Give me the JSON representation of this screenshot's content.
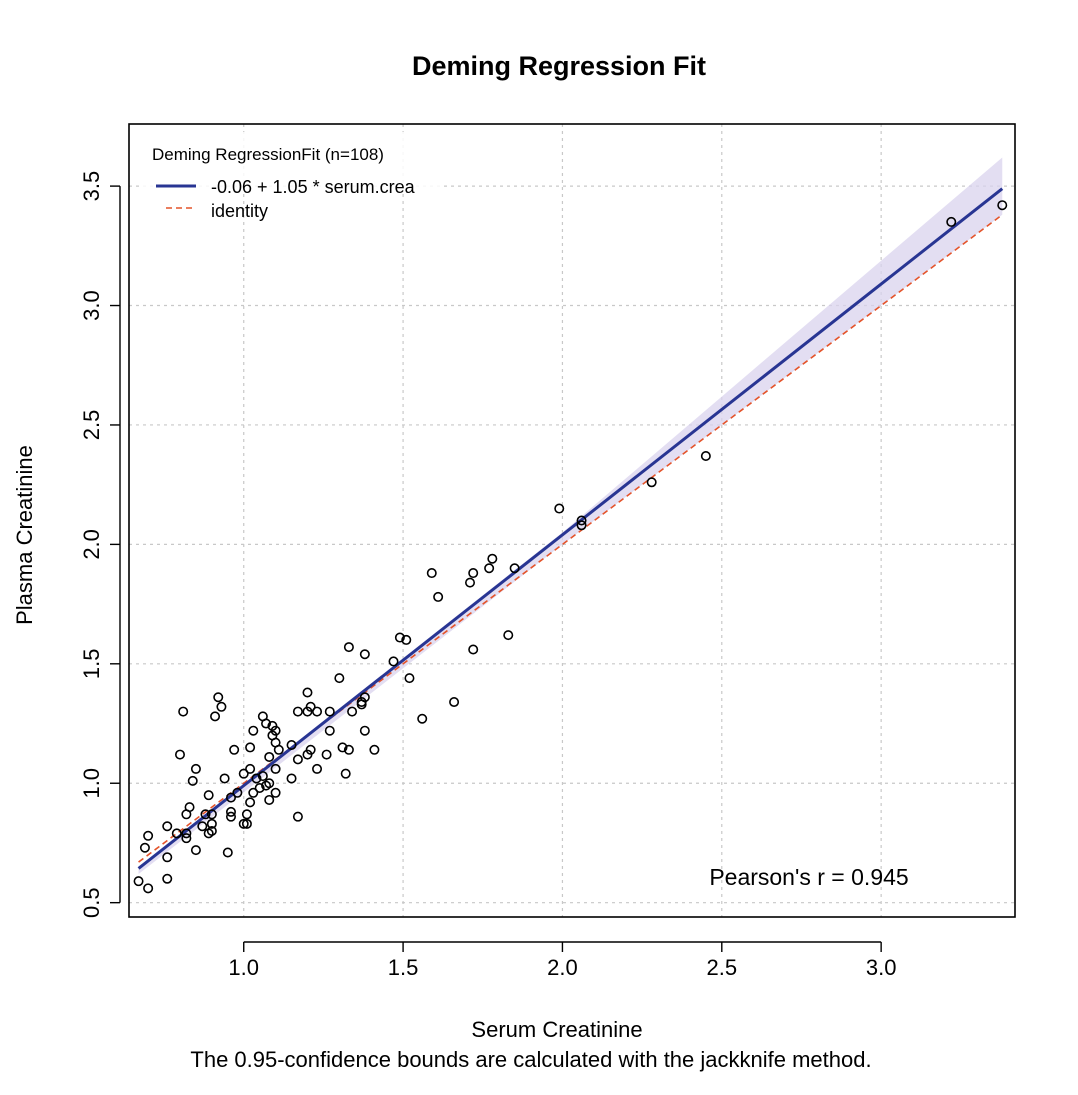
{
  "chart_data": {
    "type": "scatter",
    "title": "Deming Regression Fit",
    "xlabel": "Serum Creatinine",
    "ylabel": "Plasma Creatinine",
    "subtitle": "The 0.95-confidence bounds are calculated with the jackknife method.",
    "annotation": "Pearson's r = 0.945",
    "xlim": [
      0.64,
      3.42
    ],
    "ylim": [
      0.44,
      3.76
    ],
    "x_ticks": [
      1.0,
      1.5,
      2.0,
      2.5,
      3.0
    ],
    "x_tick_labels": [
      "1.0",
      "1.5",
      "2.0",
      "2.5",
      "3.0"
    ],
    "y_ticks": [
      0.5,
      1.0,
      1.5,
      2.0,
      2.5,
      3.0,
      3.5
    ],
    "y_tick_labels": [
      "0.5",
      "1.0",
      "1.5",
      "2.0",
      "2.5",
      "3.0",
      "3.5"
    ],
    "grid": true,
    "legend": {
      "title": "Deming RegressionFit (n=108)",
      "position": "top-left",
      "entries": [
        {
          "label": "-0.06 + 1.05 * serum.crea",
          "color": "#283593",
          "style": "solid"
        },
        {
          "label": "identity",
          "color": "#e4532a",
          "style": "dashed"
        }
      ]
    },
    "regression": {
      "intercept": -0.06,
      "slope": 1.05,
      "x_range": [
        0.67,
        3.38
      ],
      "color": "#283593"
    },
    "identity_line": {
      "x_range": [
        0.67,
        3.38
      ],
      "color": "#e4532a"
    },
    "confidence_band": {
      "color": "#d9d3ee",
      "lower": [
        [
          0.67,
          0.62
        ],
        [
          2.0,
          2.0
        ],
        [
          3.38,
          3.38
        ]
      ],
      "upper": [
        [
          0.67,
          0.65
        ],
        [
          2.0,
          2.05
        ],
        [
          3.38,
          3.62
        ]
      ]
    },
    "points": [
      [
        0.67,
        0.59
      ],
      [
        0.69,
        0.73
      ],
      [
        0.7,
        0.56
      ],
      [
        0.7,
        0.78
      ],
      [
        0.76,
        0.69
      ],
      [
        0.76,
        0.6
      ],
      [
        0.76,
        0.82
      ],
      [
        0.79,
        0.79
      ],
      [
        0.8,
        1.12
      ],
      [
        0.81,
        1.3
      ],
      [
        0.82,
        0.77
      ],
      [
        0.82,
        0.79
      ],
      [
        0.82,
        0.87
      ],
      [
        0.83,
        0.9
      ],
      [
        0.84,
        1.01
      ],
      [
        0.85,
        0.72
      ],
      [
        0.85,
        1.06
      ],
      [
        0.87,
        0.82
      ],
      [
        0.88,
        0.87
      ],
      [
        0.89,
        0.79
      ],
      [
        0.89,
        0.95
      ],
      [
        0.9,
        0.8
      ],
      [
        0.9,
        0.83
      ],
      [
        0.9,
        0.87
      ],
      [
        0.91,
        1.28
      ],
      [
        0.92,
        1.36
      ],
      [
        0.93,
        1.32
      ],
      [
        0.94,
        1.02
      ],
      [
        0.95,
        0.71
      ],
      [
        0.96,
        0.94
      ],
      [
        0.96,
        0.86
      ],
      [
        0.96,
        0.88
      ],
      [
        0.97,
        1.14
      ],
      [
        0.98,
        0.96
      ],
      [
        1.0,
        0.83
      ],
      [
        1.0,
        1.04
      ],
      [
        1.01,
        0.83
      ],
      [
        1.01,
        0.87
      ],
      [
        1.02,
        0.92
      ],
      [
        1.02,
        1.06
      ],
      [
        1.02,
        1.15
      ],
      [
        1.03,
        1.22
      ],
      [
        1.03,
        0.96
      ],
      [
        1.04,
        1.02
      ],
      [
        1.05,
        0.98
      ],
      [
        1.06,
        1.03
      ],
      [
        1.06,
        1.28
      ],
      [
        1.07,
        0.99
      ],
      [
        1.07,
        1.25
      ],
      [
        1.08,
        1.0
      ],
      [
        1.08,
        1.11
      ],
      [
        1.08,
        0.93
      ],
      [
        1.09,
        1.24
      ],
      [
        1.09,
        1.2
      ],
      [
        1.1,
        1.06
      ],
      [
        1.1,
        0.96
      ],
      [
        1.1,
        1.17
      ],
      [
        1.1,
        1.22
      ],
      [
        1.11,
        1.14
      ],
      [
        1.15,
        1.16
      ],
      [
        1.15,
        1.02
      ],
      [
        1.17,
        0.86
      ],
      [
        1.17,
        1.1
      ],
      [
        1.17,
        1.3
      ],
      [
        1.2,
        1.12
      ],
      [
        1.2,
        1.3
      ],
      [
        1.2,
        1.38
      ],
      [
        1.21,
        1.14
      ],
      [
        1.21,
        1.32
      ],
      [
        1.23,
        1.06
      ],
      [
        1.23,
        1.3
      ],
      [
        1.26,
        1.12
      ],
      [
        1.27,
        1.22
      ],
      [
        1.27,
        1.3
      ],
      [
        1.3,
        1.44
      ],
      [
        1.31,
        1.15
      ],
      [
        1.32,
        1.04
      ],
      [
        1.33,
        1.14
      ],
      [
        1.33,
        1.57
      ],
      [
        1.34,
        1.3
      ],
      [
        1.37,
        1.34
      ],
      [
        1.38,
        1.36
      ],
      [
        1.38,
        1.22
      ],
      [
        1.38,
        1.54
      ],
      [
        1.41,
        1.14
      ],
      [
        1.47,
        1.51
      ],
      [
        1.49,
        1.61
      ],
      [
        1.51,
        1.6
      ],
      [
        1.52,
        1.44
      ],
      [
        1.56,
        1.27
      ],
      [
        1.59,
        1.88
      ],
      [
        1.61,
        1.78
      ],
      [
        1.66,
        1.34
      ],
      [
        1.71,
        1.84
      ],
      [
        1.72,
        1.56
      ],
      [
        1.72,
        1.88
      ],
      [
        1.77,
        1.9
      ],
      [
        1.78,
        1.94
      ],
      [
        1.83,
        1.62
      ],
      [
        1.85,
        1.9
      ],
      [
        1.99,
        2.15
      ],
      [
        2.06,
        2.08
      ],
      [
        2.06,
        2.1
      ],
      [
        2.28,
        2.26
      ],
      [
        2.45,
        2.37
      ],
      [
        3.22,
        3.35
      ],
      [
        3.38,
        3.42
      ],
      [
        1.37,
        1.33
      ]
    ]
  }
}
